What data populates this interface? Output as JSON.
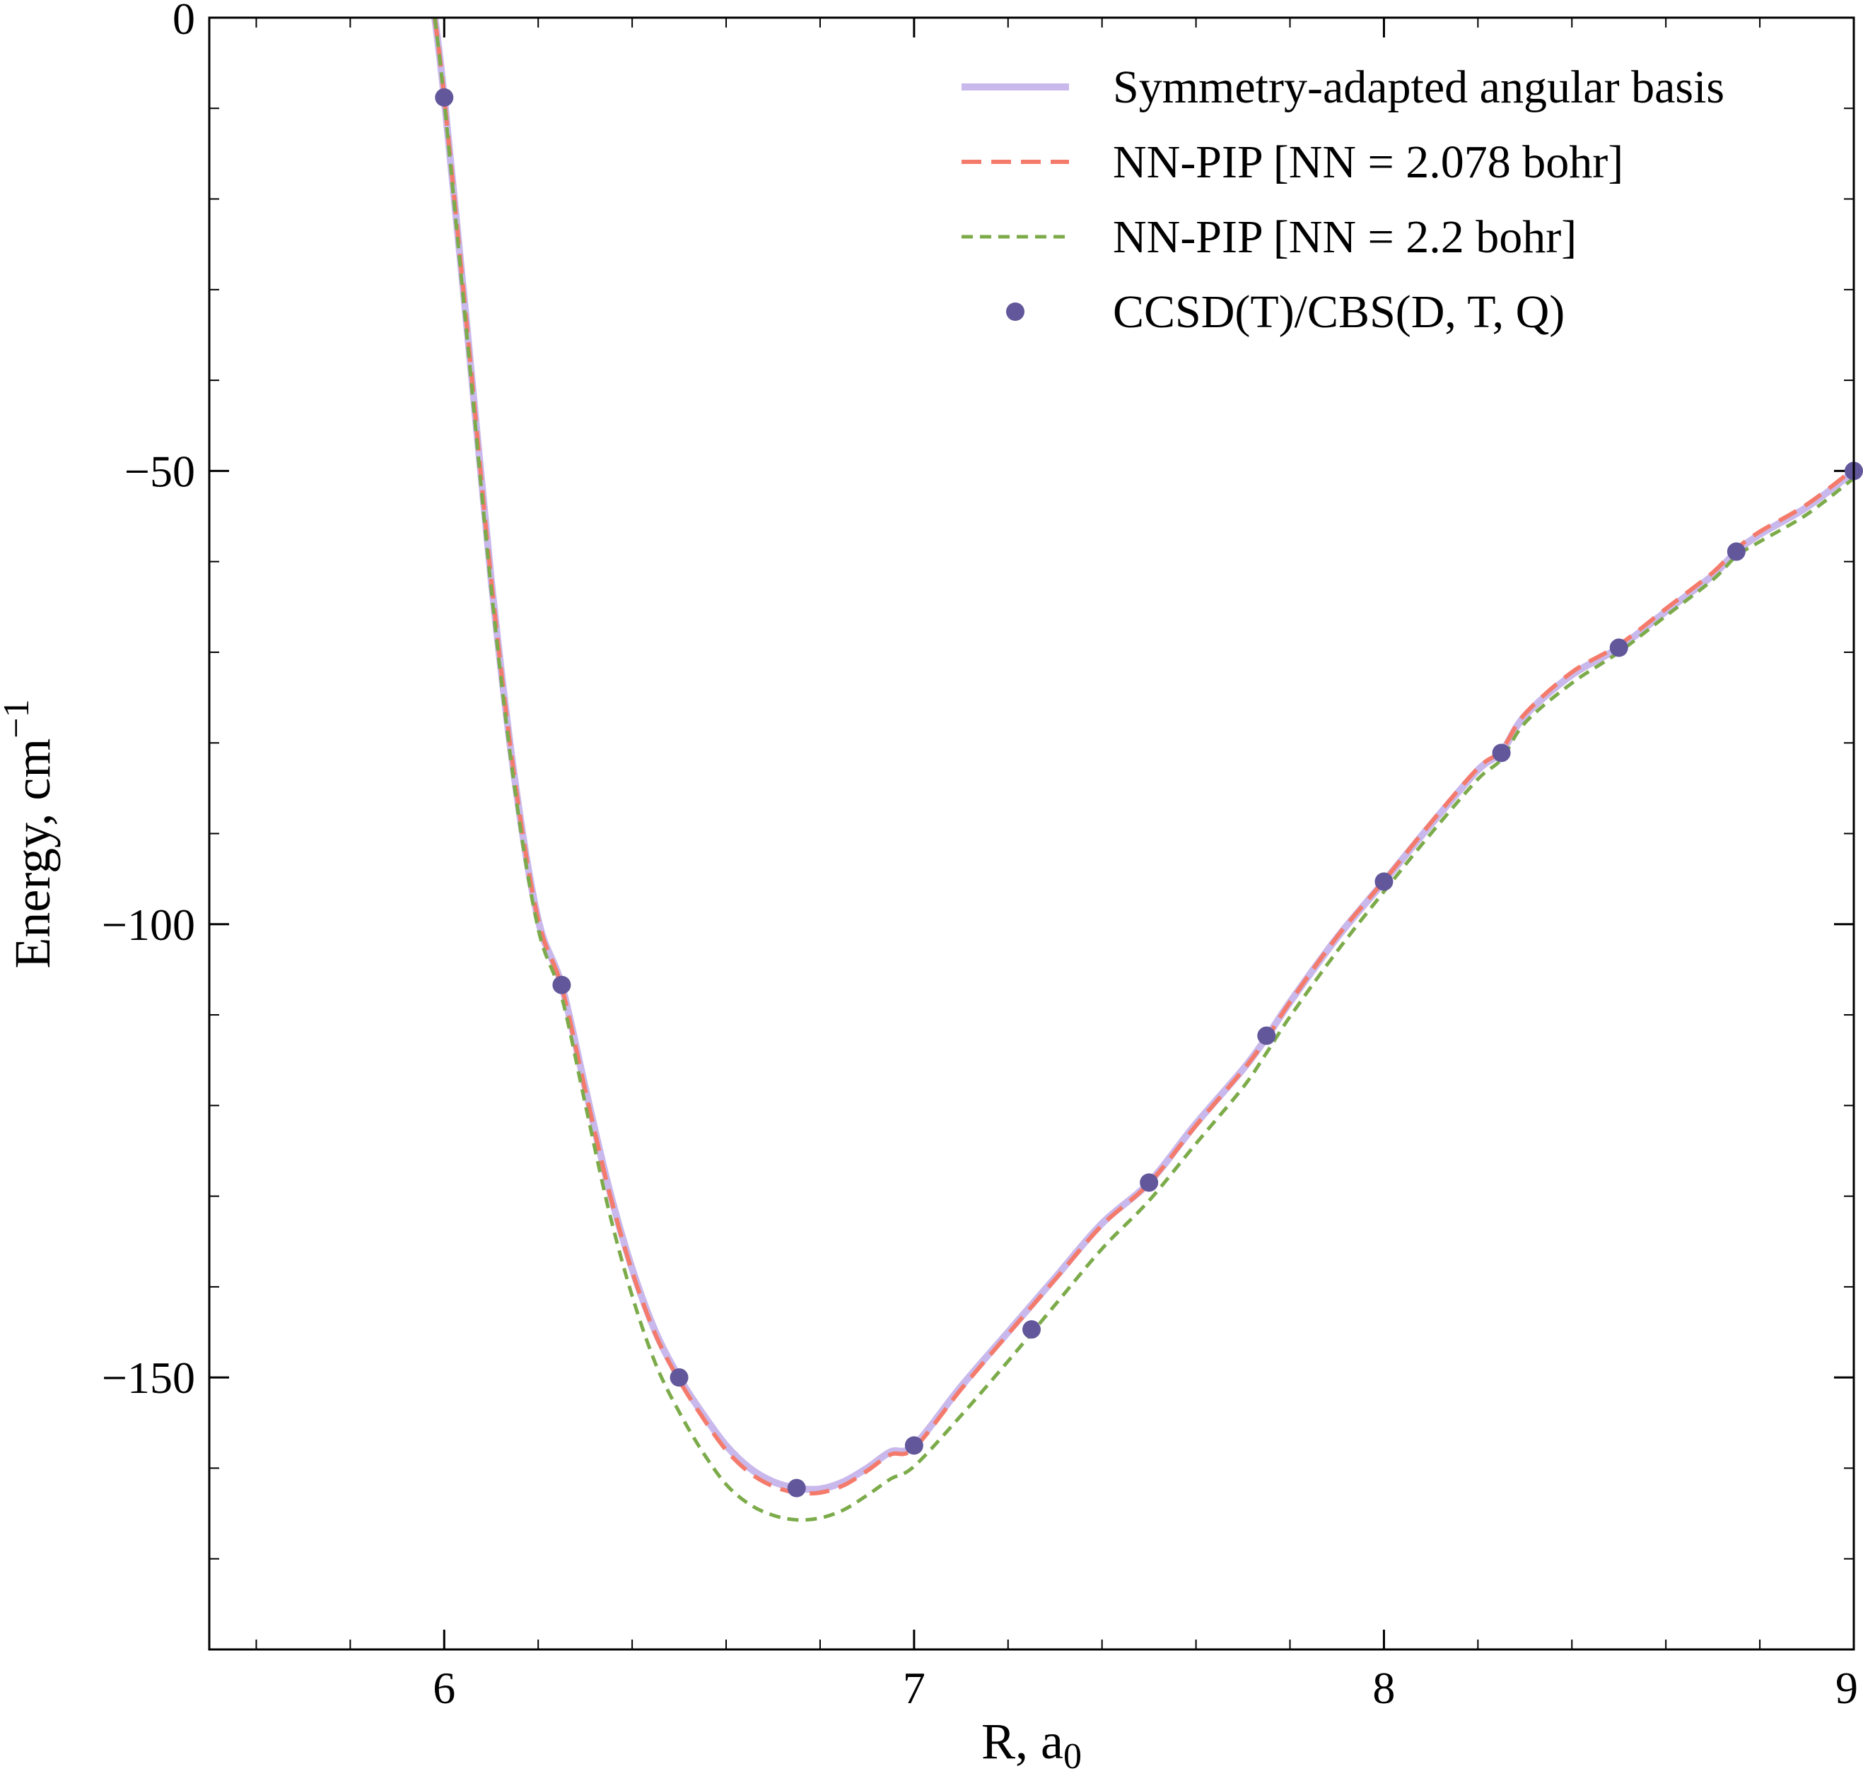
{
  "chart_data": {
    "type": "line",
    "xlabel": "R, a",
    "xlabel_sub": "0",
    "ylabel": "Energy, cm",
    "ylabel_sup": "−1",
    "xlim": [
      5.5,
      9.0
    ],
    "ylim": [
      -180,
      0
    ],
    "x_ticks": [
      6,
      7,
      8,
      9
    ],
    "x_tick_labels": [
      "6",
      "7",
      "8",
      "9"
    ],
    "x_minor_step": 0.2,
    "y_ticks": [
      0,
      -50,
      -100,
      -150
    ],
    "y_tick_labels": [
      "0",
      "−50",
      "−100",
      "−150"
    ],
    "y_minor_step": 10,
    "grid": false,
    "legend_position": "top-right",
    "series": [
      {
        "name": "Symmetry-adapted angular basis",
        "style": "solid",
        "color": "#c9b8ec",
        "x": [
          5.98,
          6.0,
          6.05,
          6.1,
          6.15,
          6.2,
          6.25,
          6.3,
          6.35,
          6.4,
          6.45,
          6.5,
          6.55,
          6.6,
          6.65,
          6.7,
          6.75,
          6.8,
          6.85,
          6.9,
          6.95,
          7.0,
          7.1,
          7.2,
          7.3,
          7.4,
          7.5,
          7.6,
          7.7,
          7.75,
          7.8,
          7.9,
          8.0,
          8.1,
          8.2,
          8.25,
          8.3,
          8.4,
          8.5,
          8.6,
          8.7,
          8.75,
          8.8,
          8.9,
          9.0
        ],
        "y": [
          0,
          -8.8,
          -35,
          -62,
          -84,
          -99.5,
          -106.7,
          -118,
          -129,
          -138,
          -145,
          -150,
          -154,
          -157.5,
          -160,
          -161.5,
          -162.2,
          -162.3,
          -161.5,
          -160,
          -158.2,
          -157.5,
          -151,
          -145,
          -139,
          -133,
          -128.5,
          -122,
          -116,
          -112.5,
          -108.6,
          -101.5,
          -95.3,
          -89,
          -83,
          -81,
          -77,
          -72.5,
          -69.5,
          -65.5,
          -61.5,
          -58.9,
          -57,
          -54,
          -50.1
        ]
      },
      {
        "name": "NN-PIP [NN = 2.078 bohr]",
        "style": "dashed",
        "color": "#f47b6b",
        "x": [
          5.98,
          6.0,
          6.05,
          6.1,
          6.15,
          6.2,
          6.25,
          6.3,
          6.35,
          6.4,
          6.45,
          6.5,
          6.55,
          6.6,
          6.65,
          6.7,
          6.75,
          6.8,
          6.85,
          6.9,
          6.95,
          7.0,
          7.1,
          7.2,
          7.3,
          7.4,
          7.5,
          7.6,
          7.7,
          7.75,
          7.8,
          7.9,
          8.0,
          8.1,
          8.2,
          8.25,
          8.3,
          8.4,
          8.5,
          8.6,
          8.7,
          8.75,
          8.8,
          8.9,
          9.0
        ],
        "y": [
          0,
          -8.8,
          -35,
          -62,
          -84,
          -99.5,
          -106.9,
          -118.3,
          -129.3,
          -138.3,
          -145.3,
          -150.3,
          -154.4,
          -158,
          -160.5,
          -162,
          -162.7,
          -162.7,
          -161.9,
          -160.3,
          -158.5,
          -157.8,
          -151.3,
          -145.2,
          -139.2,
          -133.2,
          -128.6,
          -122.2,
          -116.1,
          -112.6,
          -108.6,
          -101.4,
          -95.2,
          -88.8,
          -82.8,
          -80.8,
          -76.8,
          -72.2,
          -69.2,
          -65.2,
          -61.2,
          -58.6,
          -56.7,
          -53.7,
          -49.8
        ]
      },
      {
        "name": "NN-PIP [NN = 2.2 bohr]",
        "style": "dashed",
        "color": "#7cab4a",
        "x": [
          5.98,
          6.0,
          6.05,
          6.1,
          6.15,
          6.2,
          6.25,
          6.3,
          6.35,
          6.4,
          6.45,
          6.5,
          6.55,
          6.6,
          6.65,
          6.7,
          6.75,
          6.8,
          6.85,
          6.9,
          6.95,
          7.0,
          7.1,
          7.2,
          7.3,
          7.4,
          7.5,
          7.6,
          7.7,
          7.75,
          7.8,
          7.9,
          8.0,
          8.1,
          8.2,
          8.25,
          8.3,
          8.4,
          8.5,
          8.6,
          8.7,
          8.75,
          8.8,
          8.9,
          9.0
        ],
        "y": [
          0,
          -9.2,
          -36,
          -63,
          -85,
          -100.5,
          -108,
          -119.8,
          -131.5,
          -141,
          -148.5,
          -153.8,
          -158.2,
          -161.8,
          -164,
          -165.2,
          -165.7,
          -165.5,
          -164.6,
          -163,
          -161.2,
          -159.8,
          -154.2,
          -148.2,
          -142,
          -135.8,
          -130.5,
          -124.2,
          -118,
          -114.2,
          -110.2,
          -103,
          -96.4,
          -90,
          -84,
          -81.8,
          -77.8,
          -73.4,
          -70,
          -66,
          -62,
          -59.4,
          -57.8,
          -54.8,
          -50.8
        ]
      },
      {
        "name": "CCSD(T)/CBS(D, T, Q)",
        "style": "markers",
        "color": "#62579a",
        "x": [
          6.0,
          6.25,
          6.5,
          6.75,
          7.0,
          7.25,
          7.5,
          7.75,
          8.0,
          8.25,
          8.5,
          8.75,
          9.0
        ],
        "y": [
          -8.8,
          -106.7,
          -150.0,
          -162.2,
          -157.5,
          -144.7,
          -128.5,
          -112.3,
          -95.3,
          -81.1,
          -69.5,
          -58.9,
          -50.0
        ]
      }
    ]
  }
}
